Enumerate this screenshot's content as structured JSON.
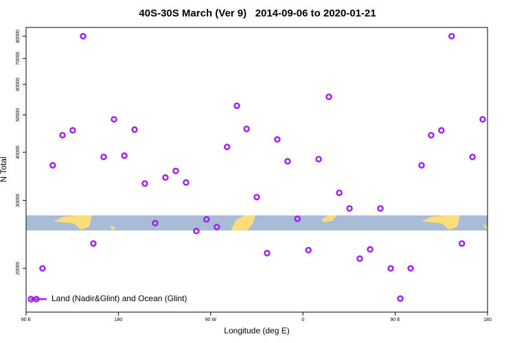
{
  "chart_data": {
    "type": "scatter",
    "title": "40S-30S March (Ver 9)   2014-09-06 to 2020-01-21",
    "x_label": "Longitude (deg E)",
    "y_label": "N Total",
    "log_y": true,
    "xlim": [
      90,
      540
    ],
    "ylim": [
      15400,
      84300
    ],
    "xticks": [
      {
        "value": 90,
        "label": "90 E"
      },
      180,
      {
        "value": 270,
        "label": "90 W"
      },
      {
        "value": 360,
        "label": "0"
      },
      {
        "value": 450,
        "label": "90 E"
      },
      {
        "value": 540,
        "label": "180"
      }
    ],
    "yticks": [
      20000,
      30000,
      40000,
      50000,
      60000,
      70000,
      80000
    ],
    "legend": "bottom-left",
    "series": [
      {
        "name": "Land (Nadir&Glint) and Ocean (Glint)",
        "color": "#a020f0",
        "x": [
          106,
          116,
          125.5,
          135.5,
          145.6,
          155.6,
          165.7,
          175.7,
          185.8,
          195.8,
          205.8,
          215.9,
          225.9,
          236,
          246,
          256,
          266,
          276,
          286,
          295.6,
          305,
          315,
          325,
          335,
          345,
          354.6,
          365.3,
          375.3,
          385.3,
          395.4,
          405.4,
          415.4,
          425.5,
          435.5,
          445.6,
          455,
          465,
          475.7,
          485,
          495,
          505,
          515,
          525.3,
          535.3
        ],
        "values": [
          20000,
          37000,
          44300,
          45600,
          80000,
          23200,
          38900,
          48700,
          39200,
          45800,
          33200,
          26200,
          34400,
          35800,
          33400,
          25000,
          26800,
          25600,
          41300,
          52800,
          46000,
          30600,
          21900,
          43200,
          37900,
          26900,
          22300,
          38400,
          55700,
          31400,
          28600,
          21200,
          22400,
          28600,
          20000,
          16700,
          20000,
          37000,
          44300,
          45600,
          80000,
          23200,
          38900,
          48700
        ]
      }
    ]
  }
}
